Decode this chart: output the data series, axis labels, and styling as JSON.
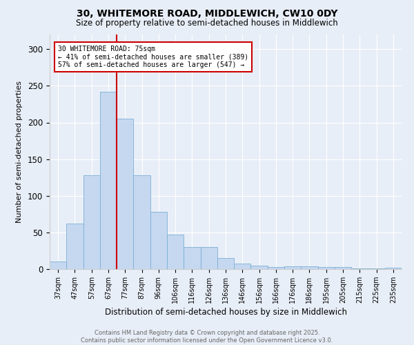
{
  "title1": "30, WHITEMORE ROAD, MIDDLEWICH, CW10 0DY",
  "title2": "Size of property relative to semi-detached houses in Middlewich",
  "xlabel": "Distribution of semi-detached houses by size in Middlewich",
  "ylabel": "Number of semi-detached properties",
  "categories": [
    "37sqm",
    "47sqm",
    "57sqm",
    "67sqm",
    "77sqm",
    "87sqm",
    "96sqm",
    "106sqm",
    "116sqm",
    "126sqm",
    "136sqm",
    "146sqm",
    "156sqm",
    "166sqm",
    "176sqm",
    "186sqm",
    "195sqm",
    "205sqm",
    "215sqm",
    "225sqm",
    "235sqm"
  ],
  "values": [
    10,
    62,
    128,
    242,
    205,
    128,
    78,
    47,
    30,
    30,
    15,
    8,
    5,
    3,
    4,
    4,
    3,
    3,
    1,
    1,
    2
  ],
  "bar_color": "#c5d8f0",
  "bar_edge_color": "#7bafd4",
  "vline_color": "#cc0000",
  "annotation_text": "30 WHITEMORE ROAD: 75sqm\n← 41% of semi-detached houses are smaller (389)\n57% of semi-detached houses are larger (547) →",
  "annotation_box_color": "#ffffff",
  "annotation_box_edge": "#cc0000",
  "ylim": [
    0,
    320
  ],
  "yticks": [
    0,
    50,
    100,
    150,
    200,
    250,
    300
  ],
  "footnote": "Contains HM Land Registry data © Crown copyright and database right 2025.\nContains public sector information licensed under the Open Government Licence v3.0.",
  "background_color": "#e8eef7",
  "plot_bg_color": "#e8eef7",
  "grid_color": "#ffffff"
}
